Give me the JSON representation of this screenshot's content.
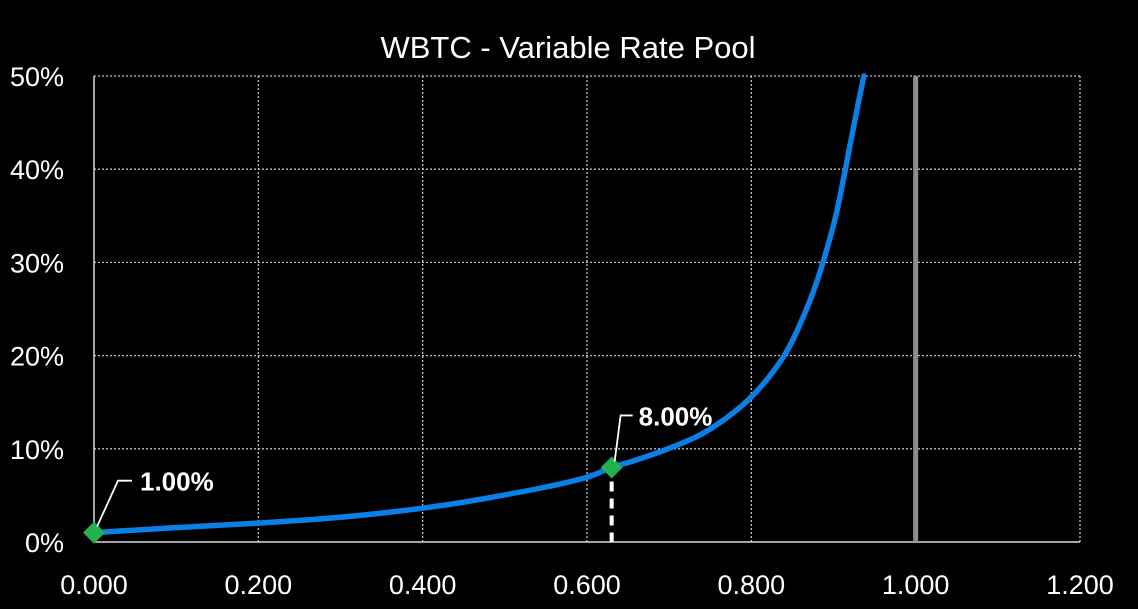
{
  "chart_data": {
    "type": "line",
    "title": "WBTC - Variable Rate Pool",
    "xlabel": "",
    "ylabel": "",
    "xlim": [
      0,
      1.2
    ],
    "ylim": [
      0,
      0.5
    ],
    "x_ticks": [
      0,
      0.2,
      0.4,
      0.6,
      0.8,
      1.0,
      1.2
    ],
    "x_tick_labels": [
      "0.000",
      "0.200",
      "0.400",
      "0.600",
      "0.800",
      "1.000",
      "1.200"
    ],
    "y_ticks": [
      0,
      0.1,
      0.2,
      0.3,
      0.4,
      0.5
    ],
    "y_tick_labels": [
      "0%",
      "10%",
      "20%",
      "30%",
      "40%",
      "50%"
    ],
    "grid": true,
    "series": [
      {
        "x": [
          0,
          0.05,
          0.1,
          0.15,
          0.2,
          0.25,
          0.3,
          0.35,
          0.4,
          0.45,
          0.5,
          0.55,
          0.6,
          0.63,
          0.66,
          0.7,
          0.74,
          0.78,
          0.81,
          0.84,
          0.86,
          0.88,
          0.9,
          0.91,
          0.92,
          0.93,
          0.937
        ],
        "y": [
          0.01,
          0.0128,
          0.0154,
          0.0178,
          0.0203,
          0.0232,
          0.0266,
          0.031,
          0.0363,
          0.0428,
          0.0505,
          0.059,
          0.0695,
          0.08,
          0.088,
          0.1005,
          0.116,
          0.14,
          0.165,
          0.2,
          0.235,
          0.28,
          0.34,
          0.38,
          0.425,
          0.47,
          0.5
        ],
        "color": "#0a7fe6"
      }
    ],
    "markers": [
      {
        "x": 0.0,
        "y": 0.01,
        "label": "1.00%",
        "color": "#22b14c"
      },
      {
        "x": 0.63,
        "y": 0.08,
        "label": "8.00%",
        "color": "#22b14c"
      }
    ],
    "vertical_lines": [
      {
        "x": 1.0,
        "color": "#8c8c8c",
        "style": "solid"
      },
      {
        "x": 0.63,
        "color": "#ffffff",
        "style": "dashed"
      }
    ],
    "colors": {
      "background": "#000000",
      "grid": "#bfbfbf",
      "text": "#ffffff"
    }
  }
}
